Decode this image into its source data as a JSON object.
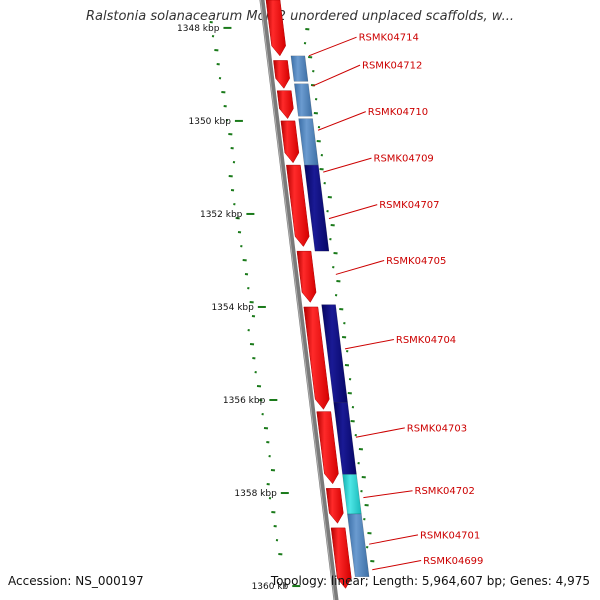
{
  "title": "Ralstonia solanacearum MolK2 unordered unplaced scaffolds, w...",
  "footer": {
    "accession": "Accession: NS_000197",
    "summary": "Topology: linear; Length: 5,964,607 bp; Genes: 4,975"
  },
  "colors": {
    "forward_gene": "#ff0000",
    "reverse_gene_light": "#4a7fb5",
    "reverse_gene_dark": "#0a0a7a",
    "reverse_gene_cyan": "#22cccc",
    "label": "#cc0000",
    "backbone": "#7a7a7a",
    "gc_ticks": "#1a7a1a"
  },
  "scale": {
    "start_kbp": 1347.4,
    "end_kbp": 1360.3,
    "ticks": [
      {
        "kbp": 1348,
        "label": "1348 kbp"
      },
      {
        "kbp": 1350,
        "label": "1350 kbp"
      },
      {
        "kbp": 1352,
        "label": "1352 kbp"
      },
      {
        "kbp": 1354,
        "label": "1354 kbp"
      },
      {
        "kbp": 1356,
        "label": "1356 kbp"
      },
      {
        "kbp": 1358,
        "label": "1358 kbp"
      },
      {
        "kbp": 1360,
        "label": "1360 kb"
      }
    ]
  },
  "forward_genes": [
    {
      "start_kbp": 1347.4,
      "end_kbp": 1348.6
    },
    {
      "start_kbp": 1348.7,
      "end_kbp": 1349.3
    },
    {
      "start_kbp": 1349.35,
      "end_kbp": 1349.95
    },
    {
      "start_kbp": 1350.0,
      "end_kbp": 1350.9
    },
    {
      "start_kbp": 1350.95,
      "end_kbp": 1352.7
    },
    {
      "start_kbp": 1352.8,
      "end_kbp": 1353.9
    },
    {
      "start_kbp": 1354.0,
      "end_kbp": 1356.2
    },
    {
      "start_kbp": 1356.25,
      "end_kbp": 1357.8
    },
    {
      "start_kbp": 1357.9,
      "end_kbp": 1358.65
    },
    {
      "start_kbp": 1358.75,
      "end_kbp": 1360.05
    }
  ],
  "reverse_genes": [
    {
      "start_kbp": 1348.6,
      "end_kbp": 1349.15,
      "shade": "light"
    },
    {
      "start_kbp": 1349.2,
      "end_kbp": 1349.9,
      "shade": "light"
    },
    {
      "start_kbp": 1349.95,
      "end_kbp": 1350.95,
      "shade": "light"
    },
    {
      "start_kbp": 1350.95,
      "end_kbp": 1352.8,
      "shade": "dark"
    },
    {
      "start_kbp": 1353.95,
      "end_kbp": 1356.05,
      "shade": "dark"
    },
    {
      "start_kbp": 1356.05,
      "end_kbp": 1357.6,
      "shade": "dark"
    },
    {
      "start_kbp": 1357.6,
      "end_kbp": 1358.45,
      "shade": "cyan"
    },
    {
      "start_kbp": 1358.45,
      "end_kbp": 1359.8,
      "shade": "light"
    }
  ],
  "gene_labels": [
    {
      "name": "RSMK04714",
      "kbp": 1348.6,
      "label_kbp": 1348.2
    },
    {
      "name": "RSMK04712",
      "kbp": 1349.25,
      "label_kbp": 1348.8
    },
    {
      "name": "RSMK04710",
      "kbp": 1350.2,
      "label_kbp": 1349.8
    },
    {
      "name": "RSMK04709",
      "kbp": 1351.1,
      "label_kbp": 1350.8
    },
    {
      "name": "RSMK04707",
      "kbp": 1352.1,
      "label_kbp": 1351.8
    },
    {
      "name": "RSMK04705",
      "kbp": 1353.3,
      "label_kbp": 1353.0
    },
    {
      "name": "RSMK04704",
      "kbp": 1354.9,
      "label_kbp": 1354.7
    },
    {
      "name": "RSMK04703",
      "kbp": 1356.8,
      "label_kbp": 1356.6
    },
    {
      "name": "RSMK04702",
      "kbp": 1358.1,
      "label_kbp": 1357.95
    },
    {
      "name": "RSMK04701",
      "kbp": 1359.1,
      "label_kbp": 1358.9
    },
    {
      "name": "RSMK04699",
      "kbp": 1359.65,
      "label_kbp": 1359.45
    }
  ]
}
